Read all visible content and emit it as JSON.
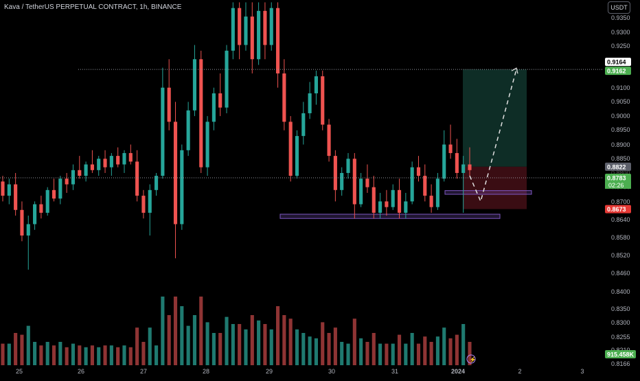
{
  "header": {
    "symbol_title": "Kava / TetherUS PERPETUAL CONTRACT, 1h, BINANCE",
    "unit_button": "USDT"
  },
  "colors": {
    "background": "#000000",
    "up": "#26a69a",
    "down": "#ef5350",
    "up_vol": "#1f7a70",
    "down_vol": "#8f3434",
    "zone": "#7e57c2",
    "profit_zone": "#0e2d26",
    "loss_zone": "#3a0d13",
    "price_tag": "#4caf50",
    "stop_tag": "#e53935",
    "last_tag": "#5d606b",
    "axis_text": "#b2b5be",
    "crosshair": "#9598a1"
  },
  "chart_data": {
    "type": "candlestick",
    "title": "Kava / TetherUS PERPETUAL CONTRACT, 1h, BINANCE",
    "y_unit": "USDT",
    "y_axis_ticks": [
      "0.9350",
      "0.9300",
      "0.9250",
      "0.9164",
      "0.9162",
      "0.9100",
      "0.9050",
      "0.9000",
      "0.8950",
      "0.8900",
      "0.8850",
      "0.8822",
      "0.8800",
      "0.8783",
      "0.8750",
      "0.8700",
      "0.8673",
      "0.8640",
      "0.8580",
      "0.8520",
      "0.8460",
      "0.8400",
      "0.8350",
      "0.8300",
      "0.8255",
      "0.8210",
      "0.8166"
    ],
    "x_axis_ticks": [
      "25",
      "26",
      "27",
      "28",
      "29",
      "30",
      "31",
      "2024",
      "2",
      "3"
    ],
    "ylim": [
      0.816,
      0.94
    ],
    "candles_ohlc_approx": [
      [
        0.877,
        0.879,
        0.87,
        0.872
      ],
      [
        0.872,
        0.878,
        0.869,
        0.876
      ],
      [
        0.876,
        0.88,
        0.865,
        0.867
      ],
      [
        0.867,
        0.87,
        0.856,
        0.858
      ],
      [
        0.858,
        0.865,
        0.846,
        0.862
      ],
      [
        0.862,
        0.87,
        0.86,
        0.869
      ],
      [
        0.869,
        0.872,
        0.864,
        0.866
      ],
      [
        0.866,
        0.875,
        0.865,
        0.874
      ],
      [
        0.874,
        0.878,
        0.87,
        0.871
      ],
      [
        0.871,
        0.879,
        0.869,
        0.878
      ],
      [
        0.878,
        0.88,
        0.873,
        0.876
      ],
      [
        0.876,
        0.883,
        0.874,
        0.881
      ],
      [
        0.881,
        0.886,
        0.878,
        0.879
      ],
      [
        0.879,
        0.884,
        0.877,
        0.883
      ],
      [
        0.883,
        0.888,
        0.88,
        0.881
      ],
      [
        0.881,
        0.886,
        0.879,
        0.885
      ],
      [
        0.885,
        0.888,
        0.88,
        0.882
      ],
      [
        0.882,
        0.887,
        0.879,
        0.886
      ],
      [
        0.886,
        0.889,
        0.882,
        0.883
      ],
      [
        0.883,
        0.888,
        0.88,
        0.887
      ],
      [
        0.887,
        0.89,
        0.883,
        0.884
      ],
      [
        0.884,
        0.888,
        0.87,
        0.872
      ],
      [
        0.872,
        0.874,
        0.864,
        0.866
      ],
      [
        0.866,
        0.876,
        0.858,
        0.874
      ],
      [
        0.874,
        0.88,
        0.872,
        0.879
      ],
      [
        0.879,
        0.917,
        0.878,
        0.91
      ],
      [
        0.91,
        0.92,
        0.895,
        0.898
      ],
      [
        0.898,
        0.905,
        0.85,
        0.862
      ],
      [
        0.862,
        0.89,
        0.86,
        0.888
      ],
      [
        0.888,
        0.905,
        0.886,
        0.902
      ],
      [
        0.902,
        0.925,
        0.9,
        0.92
      ],
      [
        0.92,
        0.923,
        0.88,
        0.882
      ],
      [
        0.882,
        0.9,
        0.879,
        0.898
      ],
      [
        0.898,
        0.91,
        0.895,
        0.908
      ],
      [
        0.908,
        0.915,
        0.9,
        0.903
      ],
      [
        0.903,
        0.925,
        0.901,
        0.923
      ],
      [
        0.923,
        0.94,
        0.92,
        0.938
      ],
      [
        0.938,
        0.94,
        0.92,
        0.925
      ],
      [
        0.925,
        0.94,
        0.923,
        0.935
      ],
      [
        0.935,
        0.94,
        0.915,
        0.92
      ],
      [
        0.92,
        0.94,
        0.918,
        0.937
      ],
      [
        0.937,
        0.94,
        0.92,
        0.925
      ],
      [
        0.925,
        0.94,
        0.923,
        0.938
      ],
      [
        0.938,
        0.94,
        0.91,
        0.915
      ],
      [
        0.915,
        0.92,
        0.895,
        0.898
      ],
      [
        0.898,
        0.9,
        0.877,
        0.879
      ],
      [
        0.879,
        0.895,
        0.878,
        0.893
      ],
      [
        0.893,
        0.905,
        0.89,
        0.901
      ],
      [
        0.901,
        0.912,
        0.899,
        0.908
      ],
      [
        0.908,
        0.916,
        0.904,
        0.914
      ],
      [
        0.914,
        0.916,
        0.895,
        0.897
      ],
      [
        0.897,
        0.899,
        0.884,
        0.886
      ],
      [
        0.886,
        0.888,
        0.87,
        0.874
      ],
      [
        0.874,
        0.882,
        0.872,
        0.88
      ],
      [
        0.88,
        0.887,
        0.878,
        0.885
      ],
      [
        0.885,
        0.887,
        0.864,
        0.869
      ],
      [
        0.869,
        0.88,
        0.868,
        0.878
      ],
      [
        0.878,
        0.883,
        0.873,
        0.875
      ],
      [
        0.875,
        0.879,
        0.864,
        0.866
      ],
      [
        0.866,
        0.873,
        0.864,
        0.87
      ],
      [
        0.87,
        0.874,
        0.865,
        0.868
      ],
      [
        0.868,
        0.876,
        0.867,
        0.874
      ],
      [
        0.874,
        0.878,
        0.864,
        0.866
      ],
      [
        0.866,
        0.873,
        0.864,
        0.87
      ],
      [
        0.87,
        0.884,
        0.869,
        0.882
      ],
      [
        0.882,
        0.886,
        0.877,
        0.879
      ],
      [
        0.879,
        0.883,
        0.87,
        0.872
      ],
      [
        0.872,
        0.876,
        0.866,
        0.868
      ],
      [
        0.868,
        0.88,
        0.867,
        0.878
      ],
      [
        0.878,
        0.895,
        0.877,
        0.89
      ],
      [
        0.89,
        0.897,
        0.885,
        0.887
      ],
      [
        0.887,
        0.892,
        0.878,
        0.88
      ],
      [
        0.88,
        0.886,
        0.866,
        0.883
      ],
      [
        0.883,
        0.889,
        0.879,
        0.881
      ]
    ],
    "annotations": {
      "support_zone": [
        0.864,
        0.8655
      ],
      "demand_zone": [
        0.8725,
        0.8738
      ],
      "target_level": "0.9164",
      "target_tag": "0.9162",
      "last_price": "0.8822",
      "current_price": "0.8783",
      "countdown": "02:26",
      "stop_price": "0.8673",
      "volume_label": "915.458K"
    },
    "legend": "none",
    "grid": false
  }
}
